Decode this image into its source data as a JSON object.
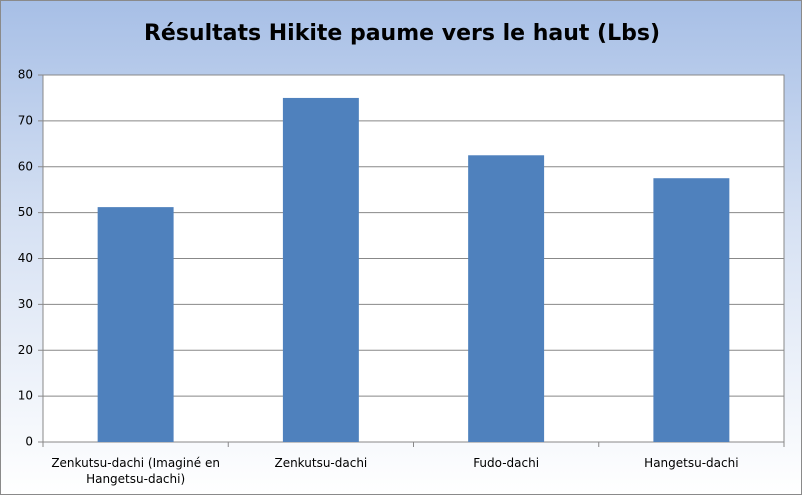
{
  "chart_data": {
    "type": "bar",
    "title": "Résultats Hikite paume vers le haut (Lbs)",
    "categories": [
      "Zenkutsu-dachi (Imaginé en Hangetsu-dachi)",
      "Zenkutsu-dachi",
      "Fudo-dachi",
      "Hangetsu-dachi"
    ],
    "values": [
      51.2,
      75,
      62.5,
      57.5
    ],
    "color": "#4f81bd",
    "ylim": [
      0,
      80
    ],
    "yticks": [
      0,
      10,
      20,
      30,
      40,
      50,
      60,
      70,
      80
    ],
    "grid": true
  }
}
